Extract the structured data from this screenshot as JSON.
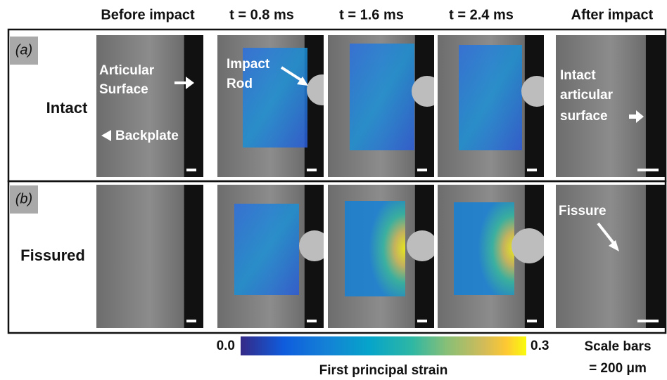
{
  "columns": [
    "Before impact",
    "t = 0.8 ms",
    "t = 1.6 ms",
    "t = 2.4 ms",
    "After impact"
  ],
  "rows": [
    {
      "tag": "(a)",
      "label": "Intact",
      "annotations": [
        [
          "Articular",
          "Surface"
        ],
        [
          "Backplate"
        ],
        [
          "Impact",
          "Rod"
        ],
        [
          "Intact",
          "articular",
          "surface"
        ]
      ]
    },
    {
      "tag": "(b)",
      "label": "Fissured",
      "annotations": [
        [
          "Fissure"
        ]
      ]
    }
  ],
  "colorbar": {
    "min_label": "0.0",
    "max_label": "0.3",
    "title": "First principal strain"
  },
  "scale_note": [
    "Scale bars",
    "= 200 μm"
  ]
}
